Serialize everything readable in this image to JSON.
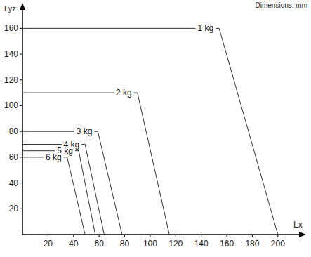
{
  "chart_data": {
    "type": "line",
    "x_label": "Lx",
    "y_label": "Lyz",
    "annotation": "Dimensions: mm",
    "xlim": [
      0,
      210
    ],
    "ylim": [
      0,
      170
    ],
    "xticks": [
      20,
      40,
      60,
      80,
      100,
      120,
      140,
      160,
      180,
      200
    ],
    "yticks": [
      20,
      40,
      60,
      80,
      100,
      120,
      140,
      160
    ],
    "grid": false,
    "color": "#333333",
    "series": [
      {
        "name": "1 kg",
        "x": [
          0,
          154,
          200
        ],
        "values": [
          160,
          160,
          0
        ]
      },
      {
        "name": "2 kg",
        "x": [
          0,
          90,
          115
        ],
        "values": [
          110,
          110,
          0
        ]
      },
      {
        "name": "3 kg",
        "x": [
          0,
          59,
          78
        ],
        "values": [
          80,
          80,
          0
        ]
      },
      {
        "name": "4 kg",
        "x": [
          0,
          49,
          64
        ],
        "values": [
          70,
          70,
          0
        ]
      },
      {
        "name": "5 kg",
        "x": [
          0,
          44,
          57
        ],
        "values": [
          65,
          65,
          0
        ]
      },
      {
        "name": "6 kg",
        "x": [
          0,
          35,
          49
        ],
        "values": [
          60,
          60,
          0
        ]
      }
    ]
  }
}
